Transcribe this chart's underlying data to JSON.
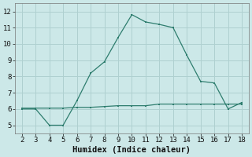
{
  "x": [
    2,
    3,
    4,
    5,
    6,
    7,
    8,
    9,
    10,
    11,
    12,
    13,
    14,
    15,
    16,
    17,
    18
  ],
  "y_main": [
    6.0,
    6.0,
    5.0,
    5.0,
    6.5,
    8.2,
    8.9,
    10.4,
    11.8,
    11.35,
    11.2,
    11.0,
    9.3,
    7.7,
    7.6,
    6.0,
    6.4
  ],
  "y_flat": [
    6.05,
    6.05,
    6.05,
    6.05,
    6.1,
    6.1,
    6.15,
    6.2,
    6.2,
    6.2,
    6.3,
    6.3,
    6.3,
    6.3,
    6.3,
    6.3,
    6.3
  ],
  "line_color": "#2e7d6e",
  "bg_color": "#cce8e8",
  "grid_color": "#afd0d0",
  "xlabel": "Humidex (Indice chaleur)",
  "xlim": [
    1.5,
    18.5
  ],
  "ylim": [
    4.5,
    12.5
  ],
  "yticks": [
    5,
    6,
    7,
    8,
    9,
    10,
    11,
    12
  ],
  "xticks": [
    2,
    3,
    4,
    5,
    6,
    7,
    8,
    9,
    10,
    11,
    12,
    13,
    14,
    15,
    16,
    17,
    18
  ],
  "tick_fontsize": 6.5,
  "xlabel_fontsize": 7.5
}
